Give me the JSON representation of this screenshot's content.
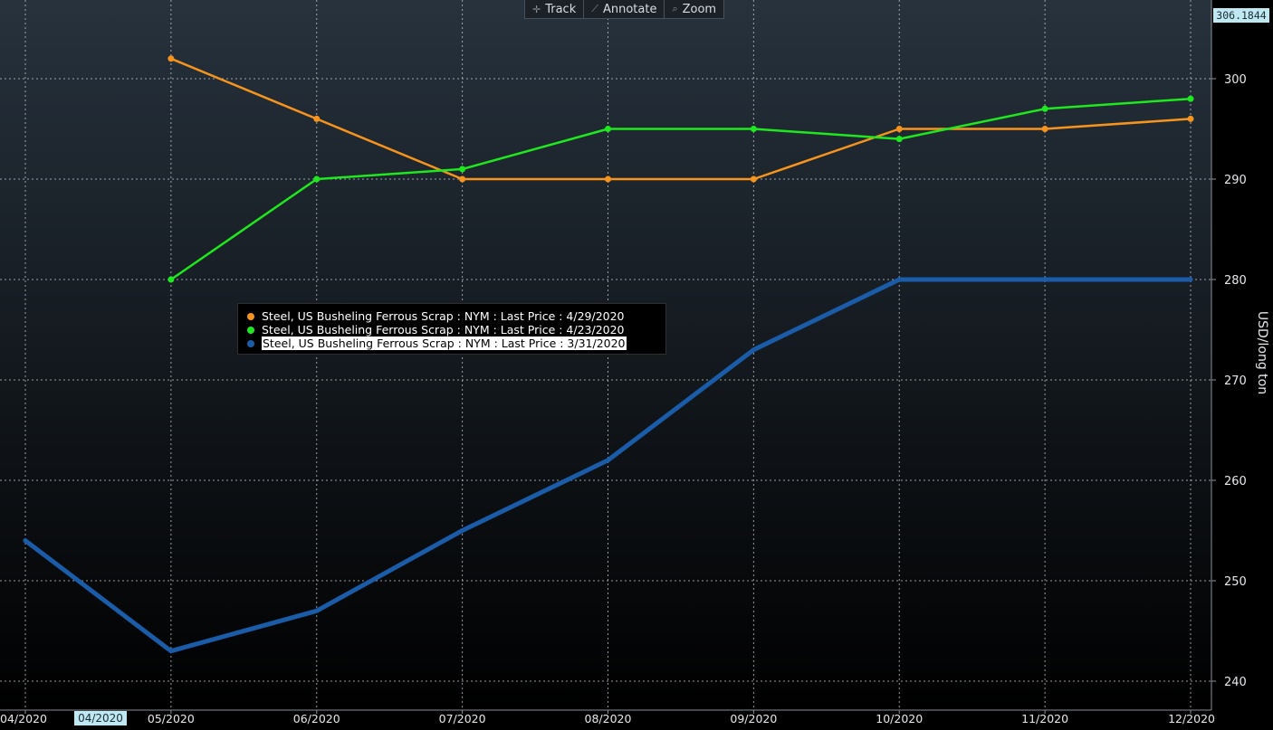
{
  "toolbar": {
    "track": {
      "label": "Track",
      "icon": "crosshair-icon"
    },
    "annotate": {
      "label": "Annotate",
      "icon": "pencil-icon"
    },
    "zoom": {
      "label": "Zoom",
      "icon": "magnifier-icon"
    }
  },
  "last_price_badge": "306.1844",
  "x_highlight_label": "04/2020",
  "chart_data": {
    "type": "line",
    "title": "",
    "ylabel": "USD/long ton",
    "xlabel": "",
    "categories": [
      "04/2020",
      "05/2020",
      "06/2020",
      "07/2020",
      "08/2020",
      "09/2020",
      "10/2020",
      "11/2020",
      "12/2020"
    ],
    "ylim": [
      238,
      307
    ],
    "yticks": [
      240,
      250,
      260,
      270,
      280,
      290,
      300
    ],
    "grid": true,
    "legend_position": "center-left",
    "series": [
      {
        "name": "Steel, US Busheling Ferrous Scrap : NYM : Last Price : 4/29/2020",
        "color": "#f7941d",
        "values": [
          null,
          302,
          296,
          290,
          290,
          290,
          295,
          295,
          296
        ]
      },
      {
        "name": "Steel, US Busheling Ferrous Scrap : NYM : Last Price : 4/23/2020",
        "color": "#1ee81e",
        "values": [
          null,
          280,
          290,
          291,
          295,
          295,
          294,
          297,
          298
        ]
      },
      {
        "name": "Steel, US Busheling Ferrous Scrap : NYM : Last Price : 3/31/2020",
        "color": "#1a5ca8",
        "values": [
          254,
          243,
          247,
          255,
          262,
          273,
          280,
          280,
          280
        ]
      }
    ]
  }
}
